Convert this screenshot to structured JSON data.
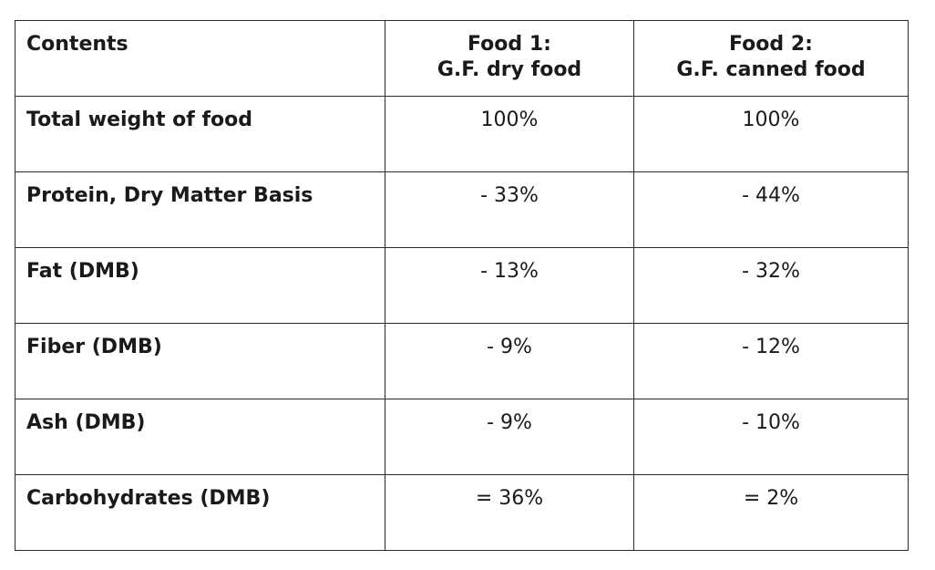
{
  "table": {
    "header": {
      "contents": "Contents",
      "food1_line1": "Food 1:",
      "food1_line2": "G.F. dry food",
      "food2_line1": "Food 2:",
      "food2_line2": "G.F. canned food"
    },
    "rows": [
      {
        "label": "Total weight of food",
        "food1": "100%",
        "food2": "100%"
      },
      {
        "label": "Protein, Dry Matter Basis",
        "food1": "- 33%",
        "food2": "- 44%"
      },
      {
        "label": "Fat (DMB)",
        "food1": "- 13%",
        "food2": "- 32%"
      },
      {
        "label": "Fiber (DMB)",
        "food1": "- 9%",
        "food2": "- 12%"
      },
      {
        "label": "Ash (DMB)",
        "food1": "- 9%",
        "food2": "- 10%"
      },
      {
        "label": "Carbohydrates (DMB)",
        "food1": "= 36%",
        "food2": "= 2%"
      }
    ]
  }
}
